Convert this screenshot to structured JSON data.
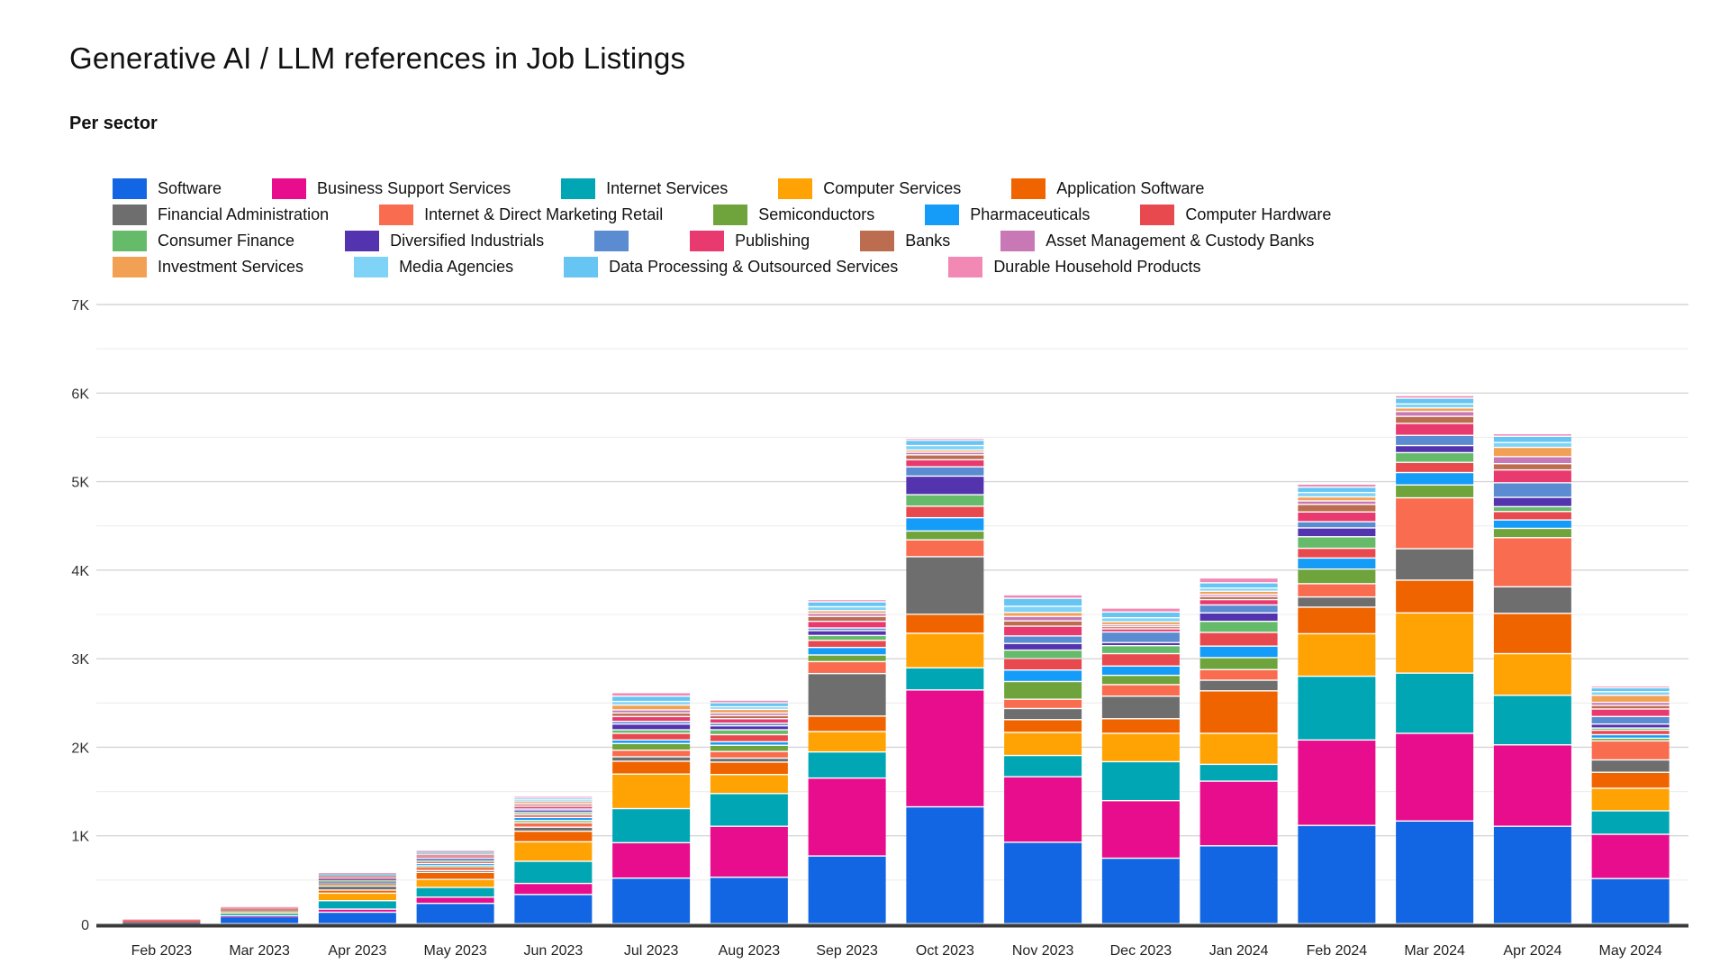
{
  "header": {
    "title": "Generative AI / LLM references in Job Listings",
    "subtitle": "Per sector"
  },
  "chart_data": {
    "type": "bar",
    "stacked": true,
    "title": "Generative AI / LLM references in Job Listings",
    "subtitle": "Per sector",
    "xlabel": "",
    "ylabel": "",
    "ylim": [
      0,
      7000
    ],
    "grid": "horizontal",
    "legend_position": "top",
    "y_ticks": [
      {
        "value": 0,
        "label": "0"
      },
      {
        "value": 1000,
        "label": "1K"
      },
      {
        "value": 2000,
        "label": "2K"
      },
      {
        "value": 3000,
        "label": "3K"
      },
      {
        "value": 4000,
        "label": "4K"
      },
      {
        "value": 5000,
        "label": "5K"
      },
      {
        "value": 6000,
        "label": "6K"
      },
      {
        "value": 7000,
        "label": "7K"
      }
    ],
    "categories": [
      "Feb 2023",
      "Mar 2023",
      "Apr 2023",
      "May 2023",
      "Jun 2023",
      "Jul 2023",
      "Aug 2023",
      "Sep 2023",
      "Oct 2023",
      "Nov 2023",
      "Dec 2023",
      "Jan 2024",
      "Feb 2024",
      "Mar 2024",
      "Apr 2024",
      "May 2024"
    ],
    "legend_rows": [
      [
        0,
        1,
        2,
        3,
        4
      ],
      [
        5,
        6,
        7,
        8,
        9
      ],
      [
        10,
        11,
        12,
        13,
        14,
        15
      ],
      [
        16,
        17,
        18,
        19
      ]
    ],
    "series": [
      {
        "name": "Software",
        "color": "#1266E3",
        "values": [
          15,
          80,
          130,
          230,
          330,
          515,
          525,
          765,
          1320,
          920,
          740,
          880,
          1110,
          1160,
          1100,
          510
        ]
      },
      {
        "name": "Business Support Services",
        "color": "#E70D8D",
        "values": [
          5,
          10,
          35,
          70,
          125,
          400,
          575,
          880,
          1320,
          740,
          650,
          730,
          965,
          990,
          920,
          500
        ]
      },
      {
        "name": "Internet Services",
        "color": "#00A6B4",
        "values": [
          5,
          30,
          95,
          110,
          250,
          385,
          370,
          295,
          250,
          240,
          440,
          190,
          720,
          680,
          560,
          265
        ]
      },
      {
        "name": "Computer Services",
        "color": "#FFA304",
        "values": [
          5,
          20,
          85,
          90,
          220,
          390,
          215,
          230,
          390,
          260,
          320,
          350,
          480,
          680,
          470,
          255
        ]
      },
      {
        "name": "Application Software",
        "color": "#F06400",
        "values": [
          5,
          15,
          35,
          80,
          120,
          145,
          140,
          175,
          215,
          145,
          165,
          480,
          300,
          370,
          455,
          180
        ]
      },
      {
        "name": "Financial Administration",
        "color": "#6E6E6E",
        "values": [
          0,
          0,
          45,
          20,
          45,
          50,
          45,
          480,
          650,
          125,
          255,
          120,
          115,
          355,
          300,
          140
        ]
      },
      {
        "name": "Internet & Direct Marketing Retail",
        "color": "#F96C4F",
        "values": [
          0,
          0,
          20,
          40,
          50,
          75,
          75,
          135,
          190,
          105,
          130,
          120,
          150,
          575,
          555,
          215
        ]
      },
      {
        "name": "Semiconductors",
        "color": "#6FA33B",
        "values": [
          0,
          0,
          10,
          15,
          25,
          75,
          70,
          75,
          100,
          200,
          105,
          135,
          165,
          145,
          105,
          30
        ]
      },
      {
        "name": "Pharmaceuticals",
        "color": "#149CF8",
        "values": [
          0,
          10,
          15,
          25,
          35,
          40,
          40,
          85,
          150,
          130,
          105,
          130,
          125,
          140,
          95,
          40
        ]
      },
      {
        "name": "Computer Hardware",
        "color": "#E8494F",
        "values": [
          0,
          0,
          10,
          20,
          30,
          75,
          80,
          80,
          130,
          130,
          140,
          155,
          110,
          115,
          95,
          50
        ]
      },
      {
        "name": "Consumer Finance",
        "color": "#66BB6A",
        "values": [
          0,
          0,
          10,
          15,
          25,
          40,
          55,
          55,
          130,
          95,
          90,
          125,
          130,
          110,
          55,
          25
        ]
      },
      {
        "name": "Diversified Industrials",
        "color": "#5333AE",
        "values": [
          0,
          0,
          15,
          15,
          25,
          65,
          45,
          55,
          210,
          75,
          35,
          95,
          100,
          80,
          105,
          45
        ]
      },
      {
        "name": "",
        "color": "#5B8BD0",
        "values": [
          0,
          0,
          5,
          10,
          15,
          30,
          30,
          30,
          105,
          85,
          120,
          90,
          70,
          115,
          165,
          85
        ]
      },
      {
        "name": "Publishing",
        "color": "#E83A6E",
        "values": [
          5,
          5,
          10,
          20,
          30,
          55,
          50,
          75,
          80,
          110,
          35,
          60,
          110,
          135,
          145,
          85
        ]
      },
      {
        "name": "Banks",
        "color": "#BC6C4F",
        "values": [
          10,
          15,
          15,
          15,
          20,
          40,
          35,
          55,
          55,
          60,
          25,
          35,
          85,
          80,
          70,
          40
        ]
      },
      {
        "name": "Asset Management & Custody Banks",
        "color": "#C878B4",
        "values": [
          0,
          0,
          10,
          10,
          15,
          35,
          30,
          35,
          30,
          50,
          20,
          25,
          40,
          55,
          80,
          35
        ]
      },
      {
        "name": "Investment Services",
        "color": "#F2A154",
        "values": [
          0,
          0,
          10,
          15,
          25,
          55,
          40,
          30,
          25,
          45,
          35,
          35,
          45,
          40,
          105,
          80
        ]
      },
      {
        "name": "Media Agencies",
        "color": "#7ED3F7",
        "values": [
          0,
          0,
          5,
          10,
          15,
          40,
          30,
          45,
          50,
          70,
          45,
          35,
          50,
          45,
          55,
          40
        ]
      },
      {
        "name": "Data Processing & Outsourced Services",
        "color": "#66C5F2",
        "values": [
          0,
          0,
          10,
          10,
          20,
          60,
          45,
          55,
          60,
          90,
          65,
          60,
          60,
          65,
          70,
          45
        ]
      },
      {
        "name": "Durable Household Products",
        "color": "#F288B4",
        "values": [
          5,
          10,
          10,
          10,
          20,
          40,
          30,
          25,
          20,
          40,
          45,
          55,
          35,
          30,
          30,
          20
        ]
      }
    ]
  }
}
